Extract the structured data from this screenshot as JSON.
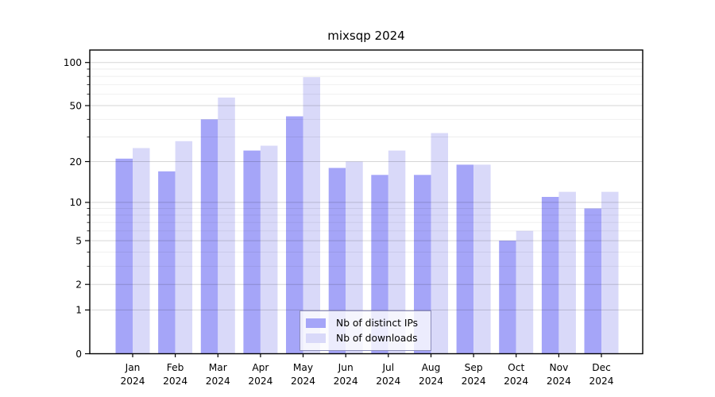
{
  "title": "mixsqp 2024",
  "chart_data": {
    "type": "bar",
    "title": "mixsqp 2024",
    "categories": [
      "Jan",
      "Feb",
      "Mar",
      "Apr",
      "May",
      "Jun",
      "Jul",
      "Aug",
      "Sep",
      "Oct",
      "Nov",
      "Dec"
    ],
    "year_label": "2024",
    "series": [
      {
        "name": "Nb of distinct IPs",
        "color": "#a5a5f8",
        "values": [
          21,
          17,
          40,
          24,
          42,
          18,
          16,
          16,
          19,
          5,
          11,
          9
        ]
      },
      {
        "name": "Nb of downloads",
        "color": "#d9d9f9",
        "values": [
          25,
          28,
          57,
          26,
          79,
          20,
          24,
          32,
          19,
          6,
          12,
          12
        ]
      }
    ],
    "yscale": "log1p",
    "yticks": [
      0,
      1,
      2,
      5,
      10,
      20,
      50,
      100
    ],
    "yticks_minor": [
      3,
      4,
      6,
      7,
      8,
      9,
      30,
      40,
      60,
      70,
      80,
      90
    ],
    "ylim": [
      0,
      122
    ],
    "xlabel": "",
    "ylabel": "",
    "grid": "horizontal",
    "legend_position": "lower center",
    "background_color": "#ffffff",
    "spine_color": "#000000"
  }
}
